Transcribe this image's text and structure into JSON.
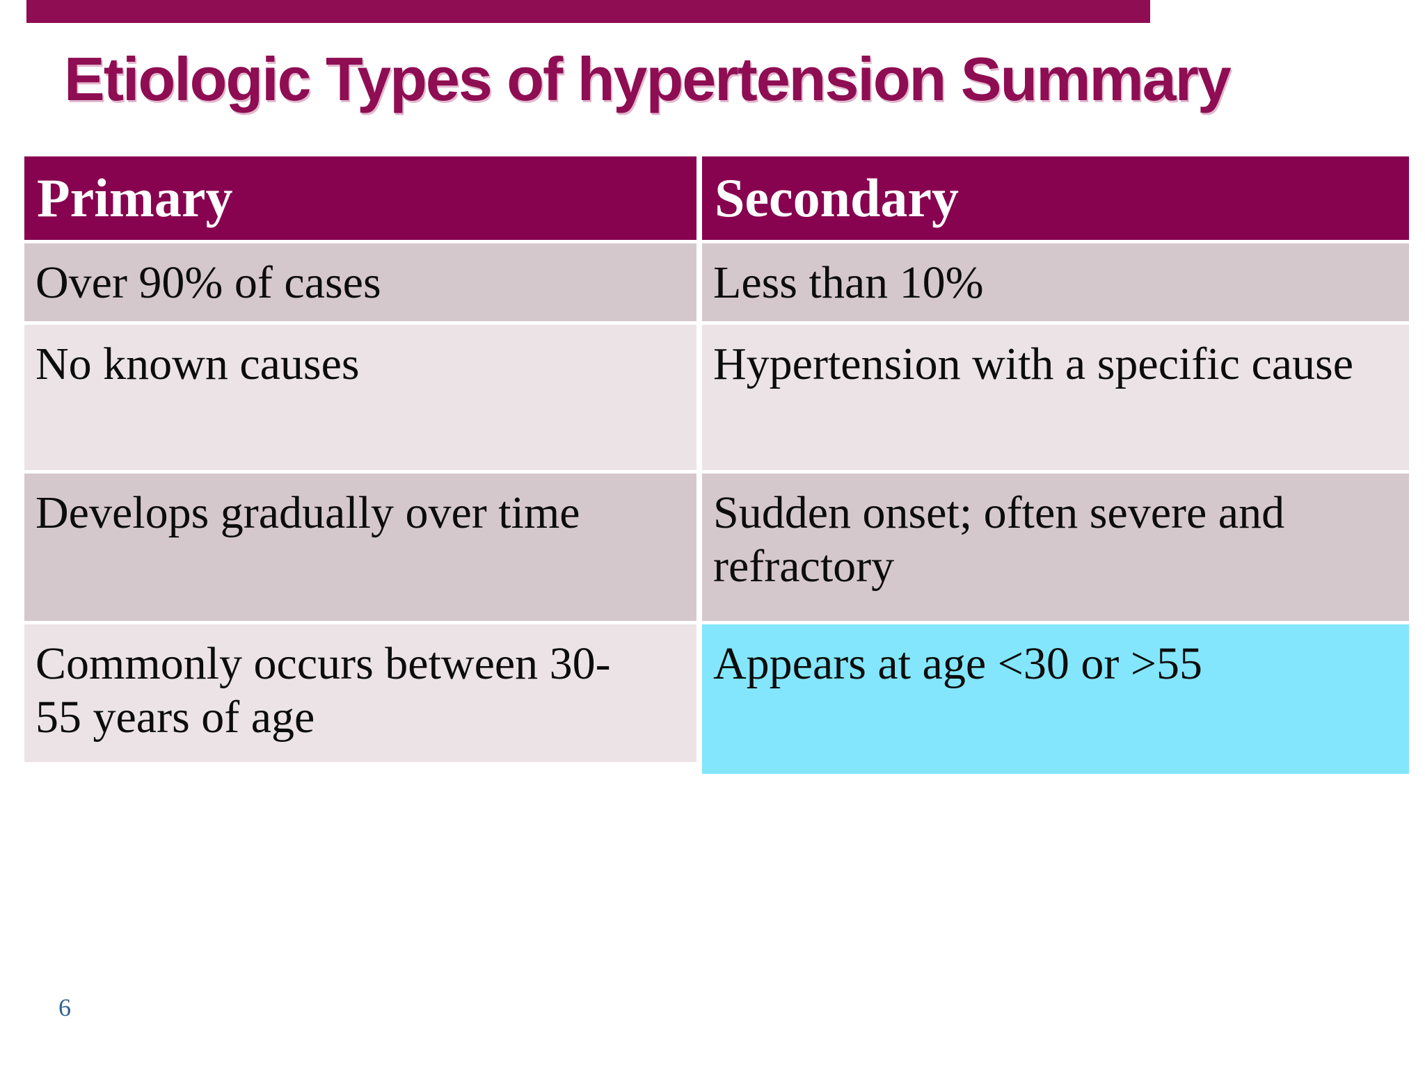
{
  "slide": {
    "title": "Etiologic Types of hypertension Summary",
    "page_number": "6",
    "colors": {
      "accent_maroon": "#8e0d53",
      "table_header_bg": "#870350",
      "row_dark": "#d5c8cc",
      "row_light": "#ebe3e6",
      "highlight_cyan": "#83e6fc",
      "header_text": "#ffffff",
      "body_text": "#0c0c0c",
      "page_number_blue": "#2f6390"
    },
    "table": {
      "headers": [
        "Primary",
        "Secondary"
      ],
      "rows": [
        [
          "Over 90% of cases",
          "Less than 10%"
        ],
        [
          "No known causes",
          "Hypertension with a specific cause"
        ],
        [
          "Develops gradually over time",
          "Sudden onset; often severe and refractory"
        ],
        [
          "Commonly occurs between 30-55 years of age",
          "Appears at age <30 or >55"
        ]
      ]
    }
  }
}
